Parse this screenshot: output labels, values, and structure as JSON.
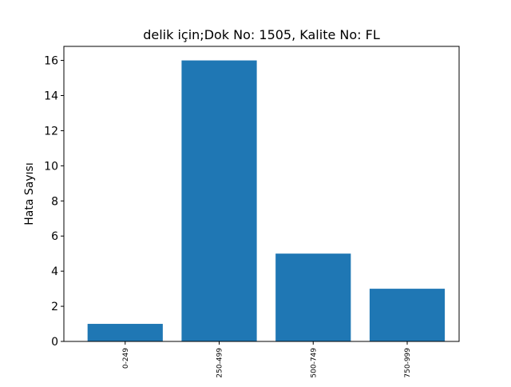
{
  "chart_data": {
    "type": "bar",
    "title": "delik için;Dok No: 1505, Kalite No: FL",
    "xlabel": "",
    "ylabel": "Hata Sayısı",
    "categories": [
      "0-249",
      "250-499",
      "500-749",
      "750-999"
    ],
    "values": [
      1,
      16,
      5,
      3
    ],
    "ylim": [
      0,
      16.8
    ],
    "yticks": [
      0,
      2,
      4,
      6,
      8,
      10,
      12,
      14,
      16
    ],
    "bar_color": "#1f77b4",
    "grid": false,
    "legend": "none"
  }
}
